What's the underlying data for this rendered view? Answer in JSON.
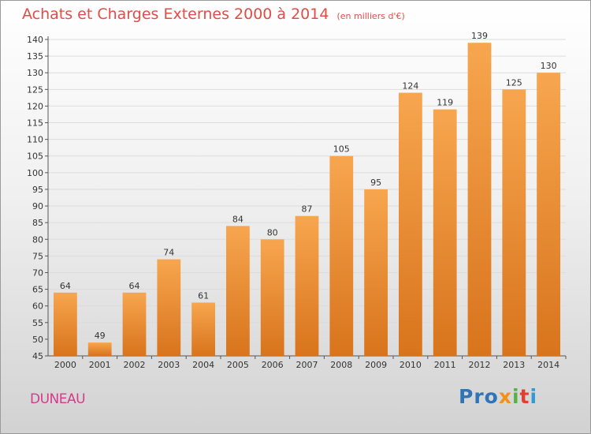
{
  "colors": {
    "title": "#df4e46",
    "place": "#d63a8a",
    "bar_top": "#f7a64f",
    "bar_bottom": "#d8741c"
  },
  "chart_data": {
    "type": "bar",
    "title": "Achats et Charges Externes 2000 à 2014",
    "subtitle": "(en milliers d'€)",
    "categories": [
      "2000",
      "2001",
      "2002",
      "2003",
      "2004",
      "2005",
      "2006",
      "2007",
      "2008",
      "2009",
      "2010",
      "2011",
      "2012",
      "2013",
      "2014"
    ],
    "values": [
      64,
      49,
      64,
      74,
      61,
      84,
      80,
      87,
      105,
      95,
      124,
      119,
      139,
      125,
      130
    ],
    "ylim": [
      45,
      140
    ],
    "ytick_step": 5,
    "grid": true,
    "data_labels": true
  },
  "place_label": "DUNEAU",
  "logo": {
    "p1": "Pro",
    "p2": "x",
    "p3": "i",
    "p4": "t",
    "p5": "i"
  }
}
